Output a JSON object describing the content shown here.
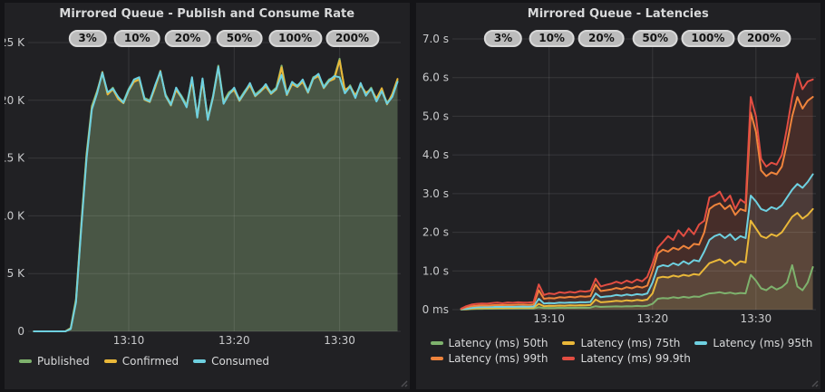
{
  "panels": [
    {
      "title": "Mirrored Queue - Publish and Consume Rate"
    },
    {
      "title": "Mirrored Queue - Latencies"
    }
  ],
  "colors": {
    "green": "#7EB26D",
    "yellow": "#EAB839",
    "cyan": "#6ED0E0",
    "orange": "#EF843C",
    "red": "#E24D42",
    "panel_bg": "#212124",
    "page_bg": "#141417",
    "text": "#d8d9da",
    "tick_text": "#c9cacc",
    "badge_bg": "#bcbcbc"
  },
  "chart_data": [
    {
      "type": "area",
      "title": "Mirrored Queue - Publish and Consume Rate",
      "x_unit": "minutes after 13:00",
      "x_start": 1.0,
      "x_step": 0.5,
      "x_range": [
        0.8,
        35.8
      ],
      "x_ticks": [
        {
          "t": 10,
          "label": "13:10"
        },
        {
          "t": 20,
          "label": "13:20"
        },
        {
          "t": 30,
          "label": "13:30"
        }
      ],
      "ylim": [
        0,
        25000
      ],
      "y_ticks": [
        {
          "v": 0,
          "label": "0"
        },
        {
          "v": 5000,
          "label": "5 K"
        },
        {
          "v": 10000,
          "label": "10 K"
        },
        {
          "v": 15000,
          "label": "15 K"
        },
        {
          "v": 20000,
          "label": "20 K"
        },
        {
          "v": 25000,
          "label": "25 K"
        }
      ],
      "grid": true,
      "legend_position": "bottom",
      "fill_opacity": 0.13,
      "annotations": [
        {
          "label": "3%",
          "t": 6.1
        },
        {
          "label": "10%",
          "t": 10.8
        },
        {
          "label": "20%",
          "t": 15.6
        },
        {
          "label": "50%",
          "t": 20.5
        },
        {
          "label": "100%",
          "t": 25.8
        },
        {
          "label": "200%",
          "t": 31.2
        }
      ],
      "series": [
        {
          "name": "Published",
          "color": "#7EB26D",
          "values": [
            0,
            0,
            0,
            0,
            0,
            0,
            0,
            300,
            2800,
            9400,
            15400,
            19500,
            20800,
            22300,
            20600,
            21100,
            20200,
            19900,
            21000,
            21700,
            21900,
            20200,
            20000,
            21200,
            22400,
            20500,
            19700,
            21000,
            20400,
            19600,
            21900,
            18700,
            21800,
            18500,
            20400,
            23000,
            19900,
            20700,
            21000,
            20100,
            20800,
            21400,
            20500,
            20900,
            21300,
            20700,
            21100,
            23000,
            20600,
            21500,
            21300,
            21700,
            20800,
            22000,
            22200,
            21200,
            21800,
            22000,
            23600,
            20700,
            21300,
            20300,
            21400,
            20500,
            21100,
            20000,
            20900,
            19800,
            20400,
            21700
          ]
        },
        {
          "name": "Confirmed",
          "color": "#EAB839",
          "values": [
            0,
            0,
            0,
            0,
            0,
            0,
            0,
            250,
            2600,
            9200,
            15200,
            19300,
            20700,
            22450,
            20500,
            20950,
            20100,
            19750,
            20850,
            21600,
            21800,
            20050,
            19850,
            21100,
            22550,
            20350,
            19550,
            20900,
            20250,
            19450,
            21750,
            18550,
            21700,
            18350,
            20250,
            22850,
            19750,
            20550,
            20900,
            19950,
            20650,
            21300,
            20350,
            20750,
            21200,
            20550,
            20950,
            22850,
            20450,
            21400,
            21150,
            21600,
            20650,
            21850,
            22100,
            21050,
            21650,
            21850,
            23450,
            20900,
            21200,
            20450,
            21300,
            20650,
            20950,
            20150,
            21050,
            19650,
            20550,
            21850
          ]
        },
        {
          "name": "Consumed",
          "color": "#6ED0E0",
          "values": [
            0,
            0,
            0,
            0,
            0,
            0,
            0,
            200,
            2500,
            9000,
            15000,
            19200,
            20600,
            22400,
            20700,
            21000,
            20300,
            19800,
            20900,
            21800,
            22000,
            20100,
            19900,
            21300,
            22500,
            20400,
            19600,
            21100,
            20300,
            19400,
            22000,
            18500,
            21900,
            18300,
            20300,
            22900,
            19700,
            20500,
            21100,
            20000,
            20700,
            21500,
            20400,
            20800,
            21400,
            20600,
            21000,
            22200,
            20500,
            21600,
            21200,
            21800,
            20700,
            21900,
            22300,
            21100,
            21700,
            22100,
            22000,
            20600,
            21200,
            20200,
            21500,
            20400,
            21000,
            19900,
            20800,
            19700,
            20300,
            21600
          ]
        }
      ]
    },
    {
      "type": "area",
      "title": "Mirrored Queue - Latencies",
      "x_unit": "minutes after 13:00",
      "x_start": 1.5,
      "x_step": 0.5,
      "x_range": [
        1.0,
        35.8
      ],
      "x_ticks": [
        {
          "t": 10,
          "label": "13:10"
        },
        {
          "t": 20,
          "label": "13:20"
        },
        {
          "t": 30,
          "label": "13:30"
        }
      ],
      "ylim": [
        0,
        7000
      ],
      "y_ticks": [
        {
          "v": 0,
          "label": "0 ms"
        },
        {
          "v": 1000,
          "label": "1.0 s"
        },
        {
          "v": 2000,
          "label": "2.0 s"
        },
        {
          "v": 3000,
          "label": "3.0 s"
        },
        {
          "v": 4000,
          "label": "4.0 s"
        },
        {
          "v": 5000,
          "label": "5.0 s"
        },
        {
          "v": 6000,
          "label": "6.0 s"
        },
        {
          "v": 7000,
          "label": "7.0 s"
        }
      ],
      "grid": true,
      "legend_position": "bottom",
      "fill_opacity": 0.1,
      "annotations": [
        {
          "label": "3%",
          "t": 5.6
        },
        {
          "label": "10%",
          "t": 10.3
        },
        {
          "label": "20%",
          "t": 15.1
        },
        {
          "label": "50%",
          "t": 20.3
        },
        {
          "label": "100%",
          "t": 25.4
        },
        {
          "label": "200%",
          "t": 30.8
        }
      ],
      "series": [
        {
          "name": "Latency (ms) 50th",
          "color": "#7EB26D",
          "values": [
            5,
            8,
            15,
            20,
            22,
            25,
            24,
            26,
            25,
            28,
            27,
            28,
            30,
            29,
            30,
            60,
            40,
            45,
            42,
            48,
            45,
            50,
            47,
            52,
            50,
            55,
            90,
            70,
            75,
            80,
            85,
            80,
            90,
            85,
            95,
            90,
            100,
            150,
            280,
            300,
            290,
            320,
            300,
            330,
            310,
            340,
            330,
            380,
            420,
            430,
            450,
            420,
            440,
            410,
            430,
            420,
            900,
            750,
            550,
            500,
            600,
            520,
            580,
            700,
            1150,
            600,
            500,
            700,
            1100
          ]
        },
        {
          "name": "Latency (ms) 75th",
          "color": "#EAB839",
          "values": [
            8,
            12,
            25,
            35,
            38,
            40,
            42,
            45,
            44,
            46,
            45,
            48,
            50,
            48,
            52,
            150,
            90,
            100,
            95,
            105,
            100,
            110,
            105,
            115,
            110,
            120,
            260,
            190,
            200,
            210,
            230,
            215,
            240,
            225,
            250,
            235,
            260,
            420,
            820,
            850,
            830,
            880,
            850,
            900,
            870,
            920,
            900,
            1050,
            1200,
            1250,
            1300,
            1200,
            1280,
            1150,
            1250,
            1220,
            2300,
            2100,
            1900,
            1850,
            1950,
            1900,
            2000,
            2200,
            2400,
            2500,
            2350,
            2450,
            2600
          ]
        },
        {
          "name": "Latency (ms) 95th",
          "color": "#6ED0E0",
          "values": [
            12,
            20,
            45,
            60,
            65,
            70,
            68,
            72,
            70,
            75,
            73,
            78,
            80,
            76,
            82,
            280,
            160,
            170,
            165,
            180,
            175,
            185,
            180,
            195,
            190,
            200,
            420,
            320,
            340,
            350,
            380,
            360,
            390,
            370,
            400,
            385,
            420,
            700,
            1100,
            1150,
            1120,
            1200,
            1150,
            1250,
            1180,
            1280,
            1250,
            1500,
            1800,
            1900,
            1950,
            1850,
            1950,
            1800,
            1900,
            1850,
            2950,
            2800,
            2600,
            2550,
            2650,
            2600,
            2700,
            2900,
            3100,
            3250,
            3150,
            3300,
            3500
          ]
        },
        {
          "name": "Latency (ms) 99th",
          "color": "#EF843C",
          "values": [
            18,
            60,
            90,
            100,
            110,
            105,
            115,
            120,
            118,
            125,
            120,
            130,
            128,
            125,
            135,
            500,
            280,
            300,
            290,
            320,
            310,
            330,
            315,
            345,
            335,
            350,
            650,
            480,
            500,
            520,
            560,
            530,
            580,
            550,
            600,
            570,
            620,
            1000,
            1450,
            1550,
            1500,
            1600,
            1550,
            1650,
            1580,
            1700,
            1680,
            2000,
            2600,
            2700,
            2750,
            2600,
            2700,
            2450,
            2600,
            2550,
            5100,
            4600,
            3600,
            3450,
            3550,
            3500,
            3700,
            4300,
            5000,
            5500,
            5200,
            5400,
            5500
          ]
        },
        {
          "name": "Latency (ms) 99.9th",
          "color": "#E24D42",
          "values": [
            25,
            90,
            130,
            150,
            160,
            155,
            170,
            180,
            165,
            185,
            175,
            190,
            180,
            185,
            195,
            650,
            380,
            420,
            400,
            450,
            430,
            460,
            440,
            480,
            465,
            490,
            800,
            600,
            640,
            670,
            720,
            680,
            750,
            700,
            780,
            730,
            850,
            1200,
            1600,
            1750,
            1900,
            1800,
            2050,
            1900,
            2100,
            1950,
            2200,
            2300,
            2900,
            2950,
            3050,
            2800,
            2950,
            2600,
            2850,
            2750,
            5500,
            5000,
            3900,
            3700,
            3800,
            3750,
            4000,
            4700,
            5500,
            6100,
            5700,
            5900,
            5950
          ]
        }
      ]
    }
  ]
}
